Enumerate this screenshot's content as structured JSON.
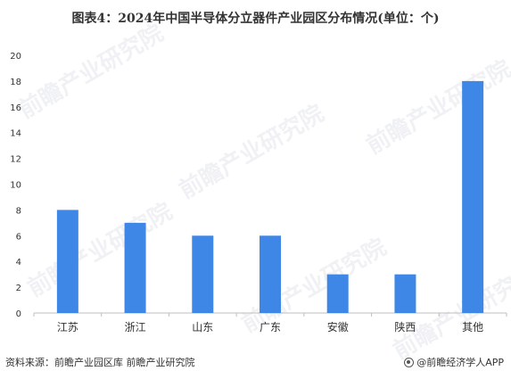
{
  "title": "图表4：2024年中国半导体分立器件产业园区分布情况(单位：个)",
  "source": "资料来源：前瞻产业园区库 前瞻产业研究院",
  "brand": "@前瞻经济学人APP",
  "watermark": "前瞻产业研究院",
  "colors": {
    "bar": "#3f87e6",
    "axis": "#bfbfbf",
    "text": "#333333"
  },
  "chart_data": {
    "type": "bar",
    "title": "图表4：2024年中国半导体分立器件产业园区分布情况(单位：个)",
    "xlabel": "",
    "ylabel": "",
    "categories": [
      "江苏",
      "浙江",
      "山东",
      "广东",
      "安徽",
      "陕西",
      "其他"
    ],
    "values": [
      8,
      7,
      6,
      6,
      3,
      3,
      18
    ],
    "ylim": [
      0,
      20
    ],
    "yticks": [
      0,
      2,
      4,
      6,
      8,
      10,
      12,
      14,
      16,
      18,
      20
    ],
    "grid": false,
    "legend": "none"
  }
}
